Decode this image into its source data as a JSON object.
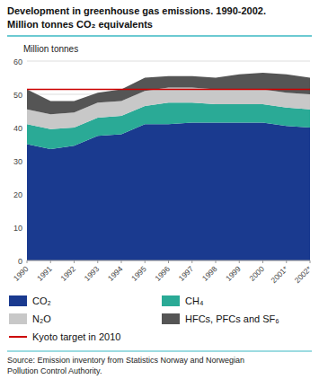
{
  "chart_data": {
    "type": "area",
    "stacked": true,
    "title": "Development in greenhouse gas emissions. 1990-2002.",
    "subtitle": "Million tonnes CO₂ equivalents",
    "y_label": "Million tonnes",
    "source": "Source: Emission inventory from Statistics Norway and Norwegian\nPollution Control Authority.",
    "categories": [
      "1990",
      "1991",
      "1992",
      "1993",
      "1994",
      "1995",
      "1996",
      "1997",
      "1998",
      "1999",
      "2000",
      "2001*",
      "2002*"
    ],
    "series": [
      {
        "name": "CO₂",
        "color": "#1a3a8f",
        "values": [
          35.0,
          33.5,
          34.5,
          37.5,
          38.0,
          41.0,
          41.0,
          41.5,
          41.5,
          41.5,
          41.5,
          40.5,
          40.0
        ]
      },
      {
        "name": "CH₄",
        "color": "#2aaa96",
        "values": [
          6.0,
          6.0,
          5.5,
          5.5,
          5.5,
          5.5,
          6.5,
          6.0,
          5.5,
          5.5,
          5.5,
          5.5,
          5.5
        ]
      },
      {
        "name": "N₂O",
        "color": "#c8c8c8",
        "values": [
          4.5,
          4.5,
          4.5,
          4.5,
          4.5,
          4.5,
          4.5,
          4.5,
          4.5,
          4.5,
          4.5,
          4.5,
          4.5
        ]
      },
      {
        "name": "HFCs, PFCs and SF₆",
        "color": "#555555",
        "values": [
          6.0,
          4.0,
          3.5,
          3.0,
          3.5,
          4.0,
          3.5,
          3.5,
          3.5,
          4.5,
          5.0,
          5.5,
          5.0
        ]
      }
    ],
    "reference_line": {
      "name": "Kyoto target in 2010",
      "value": 51.5,
      "color": "#cc0000"
    },
    "ylim": [
      0,
      60
    ],
    "yticks": [
      0,
      10,
      20,
      30,
      40,
      50,
      60
    ],
    "grid": true,
    "legend": "bottom"
  }
}
